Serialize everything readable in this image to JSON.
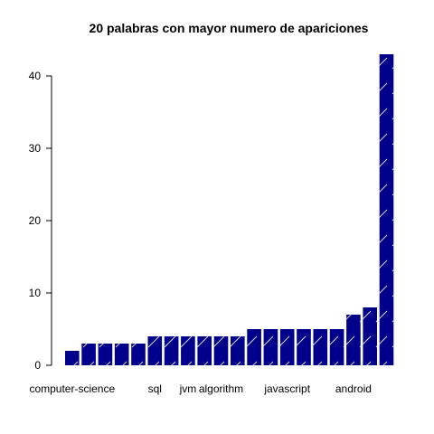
{
  "chart_data": {
    "type": "bar",
    "title": "20 palabras con mayor numero de apariciones",
    "xlabel": "",
    "ylabel": "",
    "categories": [
      "computer-science",
      "",
      "",
      "",
      "",
      "sql",
      "",
      "jvm",
      "",
      "algorithm",
      "",
      "",
      "",
      "javascript",
      "",
      "",
      "",
      "android",
      "",
      ""
    ],
    "values": [
      2,
      3,
      3,
      3,
      3,
      4,
      4,
      4,
      4,
      4,
      4,
      5,
      5,
      5,
      5,
      5,
      5,
      7,
      8,
      43
    ],
    "ylim": [
      0,
      43
    ],
    "yticks": [
      0,
      10,
      20,
      30,
      40
    ],
    "grid": false,
    "legend": "none",
    "bar_fill": "#00008B",
    "hatch_color": "#FFFFFF"
  }
}
